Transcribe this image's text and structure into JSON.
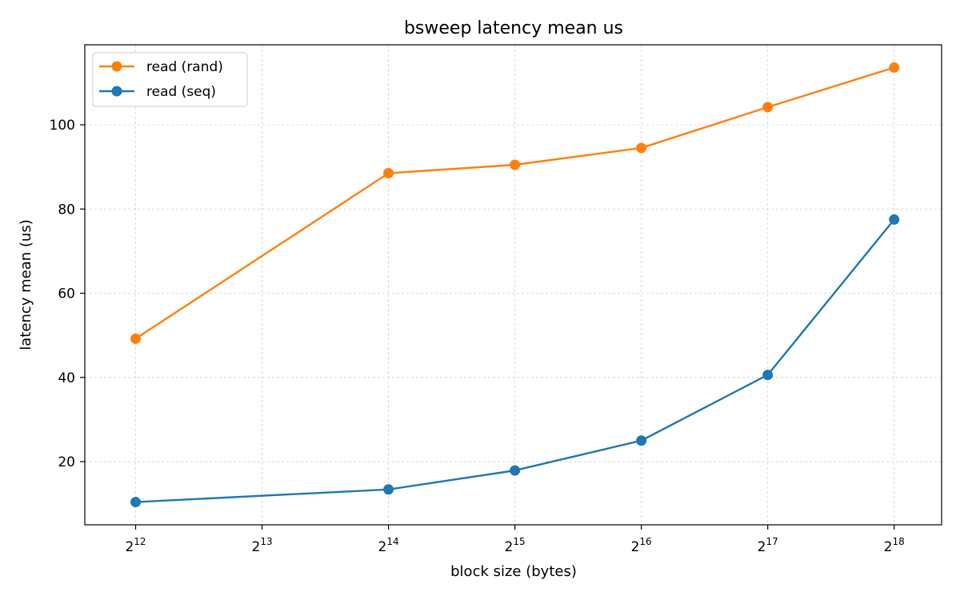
{
  "chart_data": {
    "type": "line",
    "title": "bsweep latency mean us",
    "xlabel": "block size (bytes)",
    "ylabel": "latency mean (us)",
    "x_scale": "log2",
    "x_ticks": [
      {
        "base": "2",
        "exp": "12",
        "value": 4096
      },
      {
        "base": "2",
        "exp": "13",
        "value": 8192
      },
      {
        "base": "2",
        "exp": "14",
        "value": 16384
      },
      {
        "base": "2",
        "exp": "15",
        "value": 32768
      },
      {
        "base": "2",
        "exp": "16",
        "value": 65536
      },
      {
        "base": "2",
        "exp": "17",
        "value": 131072
      },
      {
        "base": "2",
        "exp": "18",
        "value": 262144
      }
    ],
    "y_ticks": [
      20,
      40,
      60,
      80,
      100
    ],
    "xlim": [
      3100,
      340000
    ],
    "ylim": [
      5,
      119
    ],
    "grid": true,
    "legend_position": "top-left",
    "series": [
      {
        "name": "read (rand)",
        "color": "#ff7f0e",
        "x": [
          4096,
          16384,
          32768,
          65536,
          131072,
          262144
        ],
        "y": [
          49.2,
          88.5,
          90.5,
          94.5,
          104.2,
          113.6
        ]
      },
      {
        "name": "read (seq)",
        "color": "#1f77b4",
        "x": [
          4096,
          16384,
          32768,
          65536,
          131072,
          262144
        ],
        "y": [
          10.4,
          13.4,
          17.9,
          25.0,
          40.6,
          77.5
        ]
      }
    ]
  }
}
